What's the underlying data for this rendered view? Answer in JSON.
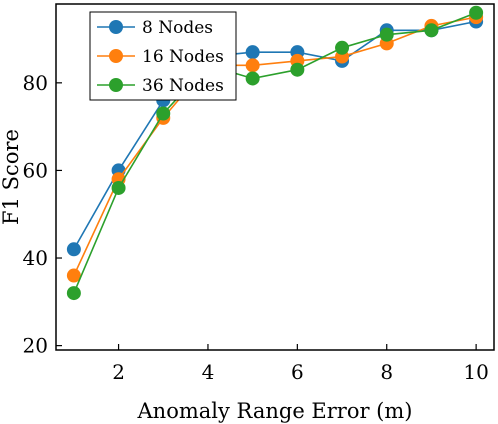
{
  "chart_data": {
    "type": "line",
    "title": "",
    "xlabel": "Anomaly Range Error (m)",
    "ylabel": "F1 Score",
    "x": [
      1,
      2,
      3,
      4,
      5,
      6,
      7,
      8,
      9,
      10
    ],
    "xlim": [
      0.6,
      10.4
    ],
    "ylim": [
      19,
      98
    ],
    "xticks": [
      2,
      4,
      6,
      8,
      10
    ],
    "yticks": [
      20,
      40,
      60,
      80
    ],
    "x_tick_labels": [
      "2",
      "4",
      "6",
      "8",
      "10"
    ],
    "y_tick_labels": [
      "20",
      "40",
      "60",
      "80"
    ],
    "grid": false,
    "legend_position": "top-left",
    "series": [
      {
        "name": "8 Nodes",
        "color": "#1f77b4",
        "values": [
          42,
          60,
          76,
          86,
          87,
          87,
          85,
          92,
          92,
          94
        ]
      },
      {
        "name": "16 Nodes",
        "color": "#ff7f0e",
        "values": [
          36,
          58,
          72,
          84,
          84,
          85,
          86,
          89,
          93,
          95
        ]
      },
      {
        "name": "36 Nodes",
        "color": "#2ca02c",
        "values": [
          32,
          56,
          73,
          84,
          81,
          83,
          88,
          91,
          92,
          96
        ]
      }
    ]
  }
}
